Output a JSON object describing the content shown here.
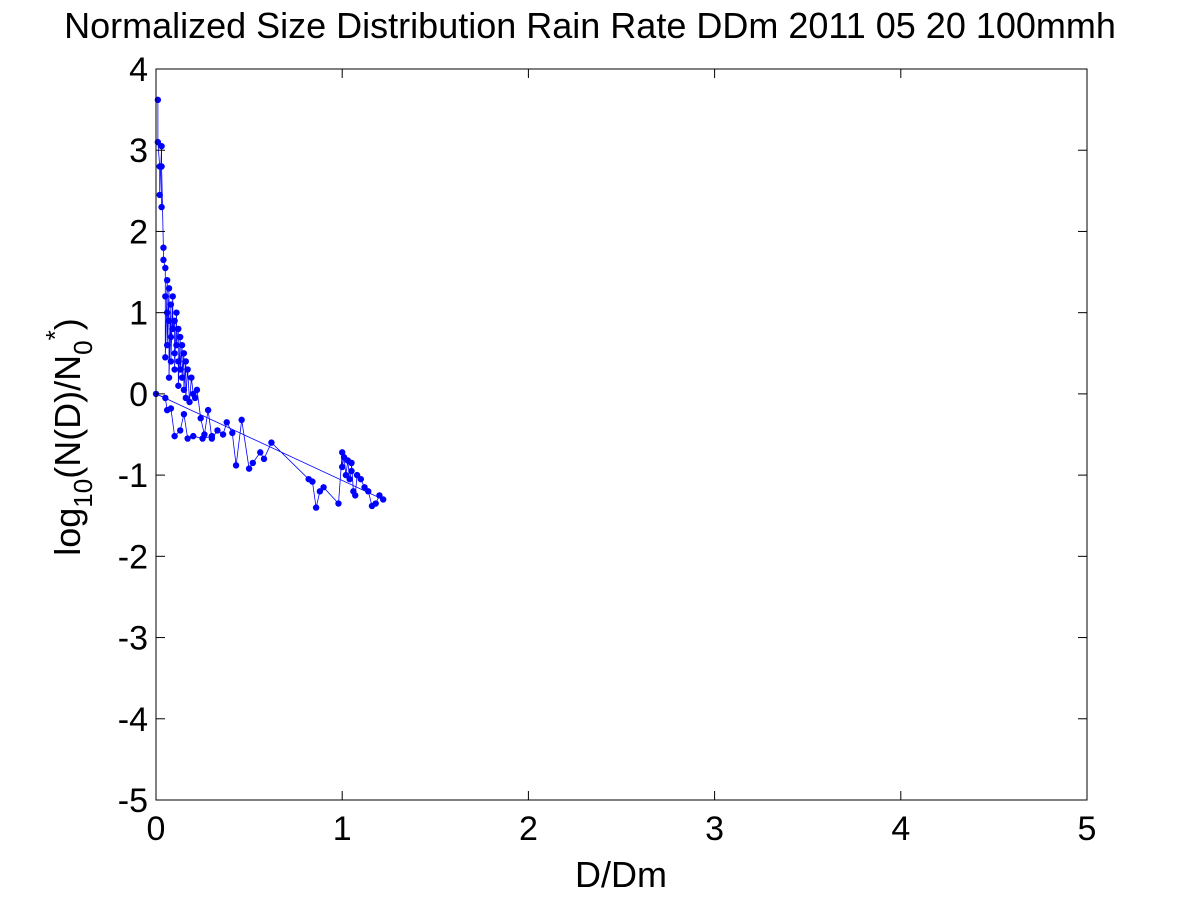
{
  "chart_data": {
    "type": "scatter",
    "title": "Normalized Size Distribution Rain Rate DDm 2011 05 20 100mmh",
    "xlabel": "D/Dm",
    "ylabel_main": "log",
    "ylabel_sub1": "10",
    "ylabel_mid": "(N(D)/N",
    "ylabel_sub2": "0",
    "ylabel_sup": "*",
    "ylabel_end": ")",
    "xlim": [
      0,
      5
    ],
    "ylim": [
      -5,
      4
    ],
    "x_ticks": [
      "0",
      "1",
      "2",
      "3",
      "4",
      "5"
    ],
    "y_ticks": [
      "-5",
      "-4",
      "-3",
      "-2",
      "-1",
      "0",
      "1",
      "2",
      "3",
      "4"
    ],
    "grid": false,
    "series_color": "#0000ff",
    "series": [
      {
        "x": [
          0.01,
          0.01,
          0.02,
          0.02,
          0.03,
          0.03,
          0.03,
          0.04,
          0.04,
          0.05,
          0.05,
          0.05,
          0.06,
          0.06,
          0.06,
          0.07,
          0.07,
          0.07,
          0.08,
          0.08,
          0.08,
          0.09,
          0.09,
          0.1,
          0.1,
          0.1,
          0.11,
          0.11,
          0.12,
          0.12,
          0.12,
          0.13,
          0.13,
          0.14,
          0.14,
          0.15,
          0.15,
          0.16,
          0.16,
          0.17,
          0.18,
          0.19,
          0.2,
          0.21,
          0.22,
          0.24,
          0.26,
          0.28,
          0.3,
          0.33,
          0.36,
          0.38,
          0.41,
          0.43,
          0.46,
          0.5,
          0.52,
          0.56,
          0.58,
          0.62,
          0.82,
          0.84,
          0.86,
          0.88,
          0.9,
          0.98,
          1.0,
          1.0,
          1.01,
          1.02,
          1.03,
          1.04,
          1.05,
          1.05,
          1.06,
          1.07,
          1.08,
          1.1,
          1.12,
          1.14,
          1.16,
          1.18,
          1.2,
          1.22,
          0.0,
          0.05,
          0.06,
          0.08,
          0.1,
          0.13,
          0.15,
          0.17,
          0.2,
          0.25,
          0.3
        ],
        "y": [
          3.62,
          3.1,
          2.8,
          2.45,
          3.05,
          2.3,
          2.8,
          1.8,
          1.65,
          1.55,
          1.2,
          0.45,
          1.4,
          1.0,
          0.6,
          1.3,
          0.9,
          0.2,
          1.1,
          0.7,
          0.4,
          1.2,
          0.8,
          0.9,
          0.5,
          0.3,
          1.0,
          0.6,
          0.8,
          0.4,
          0.1,
          0.7,
          0.3,
          0.6,
          0.2,
          0.5,
          0.05,
          0.4,
          -0.05,
          0.3,
          -0.1,
          0.2,
          0.0,
          -0.05,
          0.05,
          -0.3,
          -0.5,
          -0.2,
          -0.55,
          -0.45,
          -0.5,
          -0.35,
          -0.48,
          -0.88,
          -0.32,
          -0.92,
          -0.85,
          -0.72,
          -0.8,
          -0.6,
          -1.05,
          -1.08,
          -1.4,
          -1.2,
          -1.15,
          -1.35,
          -0.72,
          -0.9,
          -0.78,
          -1.0,
          -0.82,
          -1.05,
          -0.95,
          -0.85,
          -1.2,
          -1.25,
          -1.0,
          -1.05,
          -1.15,
          -1.2,
          -1.38,
          -1.35,
          -1.25,
          -1.3,
          0.0,
          -0.05,
          -0.2,
          -0.18,
          -0.52,
          -0.45,
          -0.25,
          -0.55,
          -0.52,
          -0.55,
          -0.52
        ]
      }
    ]
  }
}
